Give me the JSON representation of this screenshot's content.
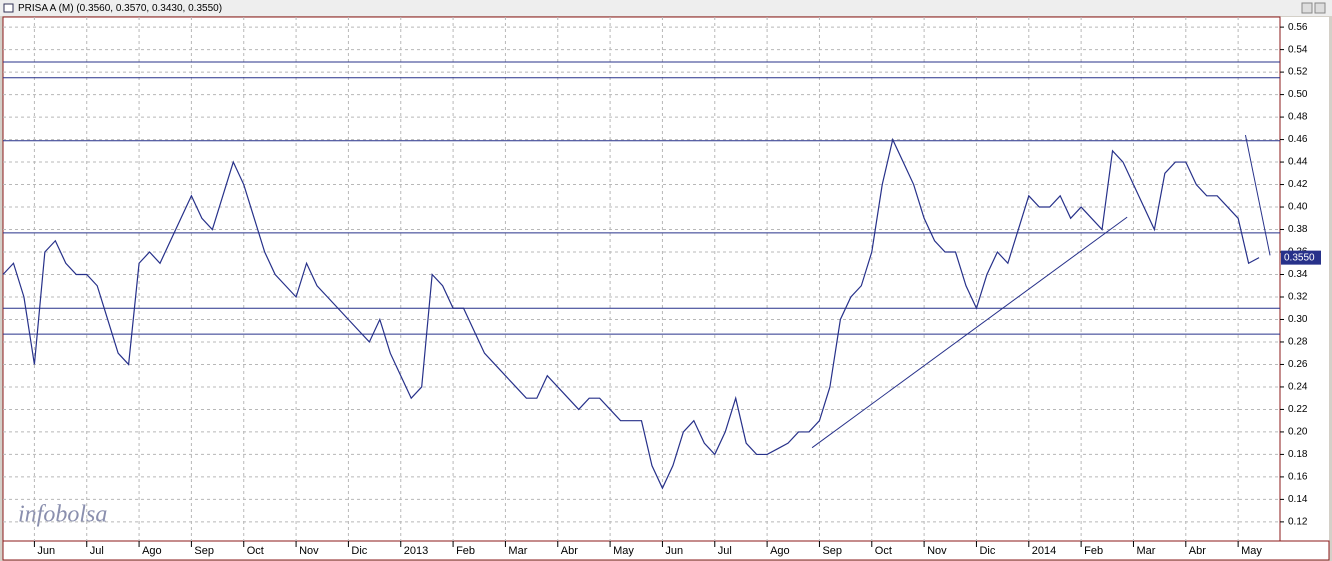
{
  "chart_data": {
    "type": "line",
    "title": "PRISA A (M) (0.3560, 0.3570, 0.3430, 0.3550)",
    "watermark": "infobolsa",
    "color": "#27318a",
    "x": [
      -0.6,
      -0.4,
      -0.2,
      0,
      0.2,
      0.4,
      0.6,
      0.8,
      1,
      1.2,
      1.4,
      1.6,
      1.8,
      2,
      2.2,
      2.4,
      2.6,
      2.8,
      3,
      3.2,
      3.4,
      3.6,
      3.8,
      4,
      4.2,
      4.4,
      4.6,
      4.8,
      5,
      5.2,
      5.4,
      5.6,
      5.8,
      6,
      6.2,
      6.4,
      6.6,
      6.8,
      7,
      7.2,
      7.4,
      7.6,
      7.8,
      8,
      8.2,
      8.4,
      8.6,
      8.8,
      9,
      9.2,
      9.4,
      9.6,
      9.8,
      10,
      10.2,
      10.4,
      10.6,
      10.8,
      11,
      11.2,
      11.4,
      11.6,
      11.8,
      12,
      12.2,
      12.4,
      12.6,
      12.8,
      13,
      13.2,
      13.4,
      13.6,
      13.8,
      14,
      14.2,
      14.4,
      14.6,
      14.8,
      15,
      15.2,
      15.4,
      15.6,
      15.8,
      16,
      16.2,
      16.4,
      16.6,
      16.8,
      17,
      17.2,
      17.4,
      17.6,
      17.8,
      18,
      18.2,
      18.4,
      18.6,
      18.8,
      19,
      19.2,
      19.4,
      19.6,
      19.8,
      20,
      20.2,
      20.4,
      20.6,
      20.8,
      21,
      21.2,
      21.4,
      21.6,
      21.8,
      22,
      22.2,
      22.4,
      22.6,
      22.8,
      23,
      23.2,
      23.4
    ],
    "values": [
      0.34,
      0.35,
      0.32,
      0.26,
      0.36,
      0.37,
      0.35,
      0.34,
      0.34,
      0.33,
      0.3,
      0.27,
      0.26,
      0.35,
      0.36,
      0.35,
      0.37,
      0.39,
      0.41,
      0.39,
      0.38,
      0.41,
      0.44,
      0.42,
      0.39,
      0.36,
      0.34,
      0.33,
      0.32,
      0.35,
      0.33,
      0.32,
      0.31,
      0.3,
      0.29,
      0.28,
      0.3,
      0.27,
      0.25,
      0.23,
      0.24,
      0.34,
      0.33,
      0.31,
      0.31,
      0.29,
      0.27,
      0.26,
      0.25,
      0.24,
      0.23,
      0.23,
      0.25,
      0.24,
      0.23,
      0.22,
      0.23,
      0.23,
      0.22,
      0.21,
      0.21,
      0.21,
      0.17,
      0.15,
      0.17,
      0.2,
      0.21,
      0.19,
      0.18,
      0.2,
      0.23,
      0.19,
      0.18,
      0.18,
      0.185,
      0.19,
      0.2,
      0.2,
      0.21,
      0.24,
      0.3,
      0.32,
      0.33,
      0.36,
      0.42,
      0.46,
      0.44,
      0.42,
      0.39,
      0.37,
      0.36,
      0.36,
      0.33,
      0.31,
      0.34,
      0.36,
      0.35,
      0.38,
      0.41,
      0.4,
      0.4,
      0.41,
      0.39,
      0.4,
      0.39,
      0.38,
      0.45,
      0.44,
      0.42,
      0.4,
      0.38,
      0.43,
      0.44,
      0.44,
      0.42,
      0.41,
      0.41,
      0.4,
      0.39,
      0.35,
      0.355
    ],
    "xlim": [
      -0.6,
      23.8
    ],
    "ylim": [
      0.103,
      0.569
    ],
    "xticks": [
      {
        "value": 0,
        "label": "Jun"
      },
      {
        "value": 1,
        "label": "Jul"
      },
      {
        "value": 2,
        "label": "Ago"
      },
      {
        "value": 3,
        "label": "Sep"
      },
      {
        "value": 4,
        "label": "Oct"
      },
      {
        "value": 5,
        "label": "Nov"
      },
      {
        "value": 6,
        "label": "Dic"
      },
      {
        "value": 7,
        "label": "2013"
      },
      {
        "value": 8,
        "label": "Feb"
      },
      {
        "value": 9,
        "label": "Mar"
      },
      {
        "value": 10,
        "label": "Abr"
      },
      {
        "value": 11,
        "label": "May"
      },
      {
        "value": 12,
        "label": "Jun"
      },
      {
        "value": 13,
        "label": "Jul"
      },
      {
        "value": 14,
        "label": "Ago"
      },
      {
        "value": 15,
        "label": "Sep"
      },
      {
        "value": 16,
        "label": "Oct"
      },
      {
        "value": 17,
        "label": "Nov"
      },
      {
        "value": 18,
        "label": "Dic"
      },
      {
        "value": 19,
        "label": "2014"
      },
      {
        "value": 20,
        "label": "Feb"
      },
      {
        "value": 21,
        "label": "Mar"
      },
      {
        "value": 22,
        "label": "Abr"
      },
      {
        "value": 23,
        "label": "May"
      }
    ],
    "yticks": [
      0.12,
      0.14,
      0.16,
      0.18,
      {
        "value": 0.2,
        "label": "0.20"
      },
      0.22,
      0.24,
      0.26,
      0.28,
      {
        "value": 0.3,
        "label": "0.30"
      },
      0.32,
      0.34,
      0.36,
      0.38,
      {
        "value": 0.4,
        "label": "0.40"
      },
      0.42,
      0.44,
      0.46,
      0.48,
      {
        "value": 0.5,
        "label": "0.50"
      },
      0.52,
      0.54,
      0.56
    ],
    "grid": true,
    "hlines": [
      0.529,
      0.515,
      0.459,
      0.377,
      0.31,
      0.287
    ],
    "trendlines": [
      {
        "x": [
          14.86,
          20.88
        ],
        "y": [
          0.186,
          0.391
        ]
      },
      {
        "x": [
          23.14,
          23.61
        ],
        "y": [
          0.464,
          0.357
        ]
      }
    ],
    "last": {
      "value": 0.355,
      "label": "0.3550"
    }
  }
}
